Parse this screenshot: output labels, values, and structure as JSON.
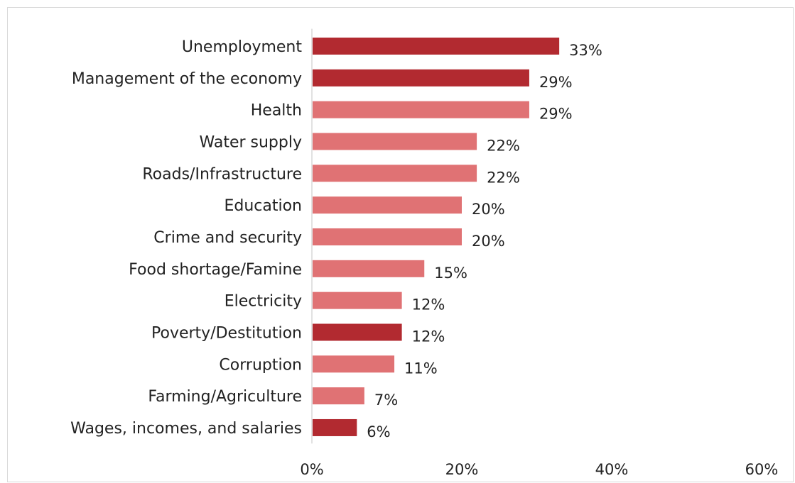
{
  "chart_data": {
    "type": "bar",
    "orientation": "horizontal",
    "categories": [
      "Unemployment",
      "Management of the economy",
      "Health",
      "Water supply",
      "Roads/Infrastructure",
      "Education",
      "Crime and security",
      "Food shortage/Famine",
      "Electricity",
      "Poverty/Destitution",
      "Corruption",
      "Farming/Agriculture",
      "Wages, incomes, and salaries"
    ],
    "values": [
      33,
      29,
      29,
      22,
      22,
      20,
      20,
      15,
      12,
      12,
      11,
      7,
      6
    ],
    "value_labels": [
      "33%",
      "29%",
      "29%",
      "22%",
      "22%",
      "20%",
      "20%",
      "15%",
      "12%",
      "12%",
      "11%",
      "7%",
      "6%"
    ],
    "highlighted": [
      true,
      true,
      false,
      false,
      false,
      false,
      false,
      false,
      false,
      true,
      false,
      false,
      true
    ],
    "xlim": [
      0,
      60
    ],
    "xticks": [
      "0%",
      "20%",
      "40%",
      "60%"
    ],
    "grid": false,
    "colors": {
      "highlight": "#b22a30",
      "normal": "#e07274",
      "axis": "#d9d9d9"
    }
  }
}
